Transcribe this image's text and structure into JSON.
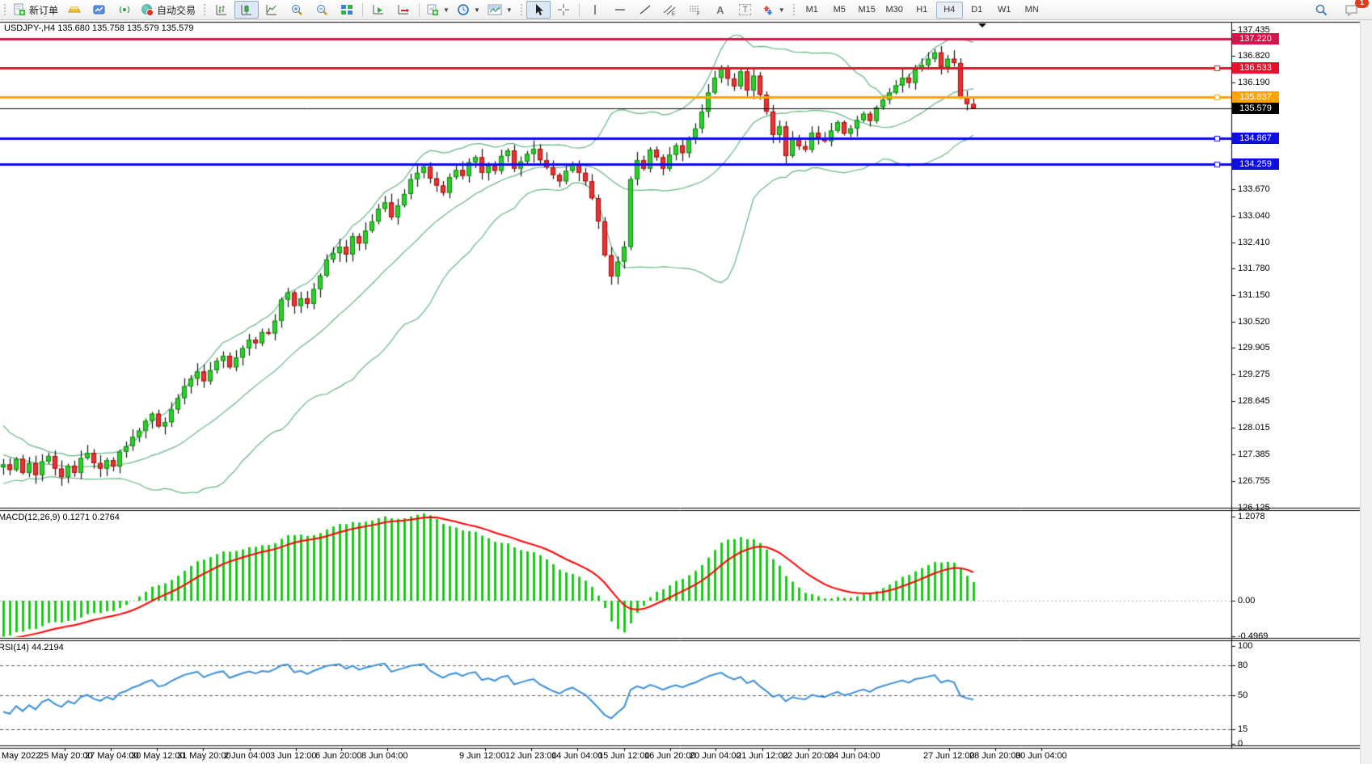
{
  "toolbar": {
    "new_order_label": "新订单",
    "auto_trading_label": "自动交易",
    "timeframes": [
      "M1",
      "M5",
      "M15",
      "M30",
      "H1",
      "H4",
      "D1",
      "W1",
      "MN"
    ],
    "active_timeframe": "H4",
    "notification_count": "1"
  },
  "chart": {
    "symbol_ohlc": "USDJPY-,H4  135.680 135.758 135.579 135.579"
  },
  "indicators": {
    "macd_text": "MACD(12,26,9) 0.1271 0.2764",
    "rsi_text": "RSI(14) 44.2194"
  },
  "chart_data": {
    "type": "candlestick",
    "symbol": "USDJPY-",
    "timeframe": "H4",
    "title": "USDJPY-,H4",
    "ohlc_display": {
      "open": "135.680",
      "high": "135.758",
      "low": "135.579",
      "close": "135.579"
    },
    "ylim_main": [
      126.125,
      137.625
    ],
    "grid": false,
    "closes": [
      127.15,
      127.02,
      127.28,
      126.95,
      127.18,
      126.9,
      127.22,
      127.35,
      127.05,
      126.85,
      127.12,
      126.95,
      127.3,
      127.42,
      127.18,
      127.05,
      127.25,
      127.1,
      127.45,
      127.58,
      127.8,
      127.95,
      128.18,
      128.35,
      128.05,
      128.15,
      128.45,
      128.72,
      129.0,
      129.18,
      129.35,
      129.12,
      129.38,
      129.6,
      129.72,
      129.45,
      129.68,
      129.9,
      130.1,
      130.02,
      130.28,
      130.25,
      130.55,
      131.05,
      131.22,
      130.9,
      131.08,
      130.95,
      131.3,
      131.62,
      132.0,
      132.15,
      132.3,
      132.12,
      132.55,
      132.38,
      132.68,
      132.9,
      133.2,
      133.35,
      133.0,
      133.28,
      133.55,
      133.9,
      134.05,
      134.2,
      133.92,
      133.75,
      133.58,
      133.95,
      134.12,
      133.98,
      134.3,
      134.42,
      134.05,
      134.22,
      134.1,
      134.45,
      134.58,
      134.15,
      134.32,
      134.5,
      134.62,
      134.35,
      134.18,
      134.0,
      133.85,
      134.1,
      134.25,
      134.05,
      133.85,
      133.45,
      132.9,
      132.1,
      131.6,
      131.95,
      132.3,
      133.9,
      134.35,
      134.15,
      134.6,
      134.42,
      134.15,
      134.48,
      134.7,
      134.52,
      134.85,
      135.1,
      135.5,
      135.95,
      136.3,
      136.55,
      136.28,
      136.1,
      136.45,
      136.0,
      136.35,
      135.9,
      135.5,
      134.95,
      135.15,
      134.45,
      134.85,
      134.68,
      134.6,
      135.0,
      134.88,
      134.8,
      135.05,
      135.25,
      134.98,
      135.1,
      135.3,
      135.45,
      135.28,
      135.6,
      135.78,
      135.95,
      136.12,
      136.3,
      136.18,
      136.5,
      136.6,
      136.75,
      136.9,
      136.55,
      136.75,
      136.65,
      135.85,
      135.68,
      135.579
    ],
    "history_pad": [
      129.3,
      129.1,
      128.9,
      129.05,
      128.7,
      128.5,
      128.65,
      128.3,
      128.1,
      128.25,
      127.9,
      127.75,
      127.88,
      127.6,
      127.5,
      127.62,
      127.38,
      127.3,
      127.42,
      127.2,
      127.15,
      127.3,
      127.05,
      127.12,
      126.98,
      127.1,
      126.95,
      127.08
    ],
    "price_axis_ticks": [
      "137.435",
      "136.820",
      "136.190",
      "133.670",
      "133.040",
      "132.410",
      "131.780",
      "131.150",
      "130.520",
      "129.905",
      "129.275",
      "128.645",
      "128.015",
      "127.385",
      "126.755",
      "126.125"
    ],
    "price_levels": [
      {
        "price": 137.22,
        "label": "137.220",
        "color": "#d6134b",
        "thickness": 3,
        "marker": false
      },
      {
        "price": 136.533,
        "label": "136.533",
        "color": "#e8112d",
        "thickness": 3,
        "marker": true
      },
      {
        "price": 135.837,
        "label": "135.837",
        "color": "#ffa500",
        "thickness": 3,
        "marker": true
      },
      {
        "price": 134.867,
        "label": "134.867",
        "color": "#0d0de0",
        "thickness": 3,
        "marker": true
      },
      {
        "price": 134.259,
        "label": "134.259",
        "color": "#0d0de0",
        "thickness": 3,
        "marker": true
      }
    ],
    "current_price": {
      "value": 135.579,
      "label": "135.579",
      "color": "#000000"
    },
    "bollinger": {
      "period": 20,
      "deviation": 2,
      "color": "#63b585"
    },
    "macd": {
      "fast": 12,
      "slow": 26,
      "signal": 9,
      "histogram_color": "#00dd00",
      "signal_color": "#ff0000",
      "axis_ticks": [
        {
          "v": 1.2078,
          "t": "1.2078"
        },
        {
          "v": 0.0,
          "t": "0.00"
        },
        {
          "v": -0.4969,
          "t": "-0.4969"
        }
      ],
      "value_main": "0.1271",
      "value_signal": "0.2764"
    },
    "rsi": {
      "period": 14,
      "color": "#3b8fd8",
      "value": "44.2194",
      "axis_ticks": [
        {
          "v": 100,
          "t": "100"
        },
        {
          "v": 80,
          "t": "80"
        },
        {
          "v": 50,
          "t": "50"
        },
        {
          "v": 15,
          "t": "15"
        },
        {
          "v": 0,
          "t": "0"
        }
      ],
      "dashed_levels": [
        80,
        50,
        15
      ]
    },
    "time_labels": [
      "May 2022",
      "25 May 20:00",
      "27 May 04:00",
      "30 May 12:00",
      "31 May 20:00",
      "2 Jun 04:00",
      "3 Jun 12:00",
      "6 Jun 20:00",
      "8 Jun 04:00",
      "9 Jun 12:00",
      "12 Jun 23:00",
      "14 Jun 04:00",
      "15 Jun 12:00",
      "16 Jun 20:00",
      "20 Jun 04:00",
      "21 Jun 12:00",
      "22 Jun 20:00",
      "24 Jun 04:00",
      "27 Jun 12:00",
      "28 Jun 20:00",
      "30 Jun 04:00"
    ],
    "candle_up_fill": "#33cc33",
    "candle_up_border": "#0f930f",
    "candle_dn_fill": "#e83535",
    "candle_dn_border": "#b31111",
    "wick_color": "#111111"
  }
}
